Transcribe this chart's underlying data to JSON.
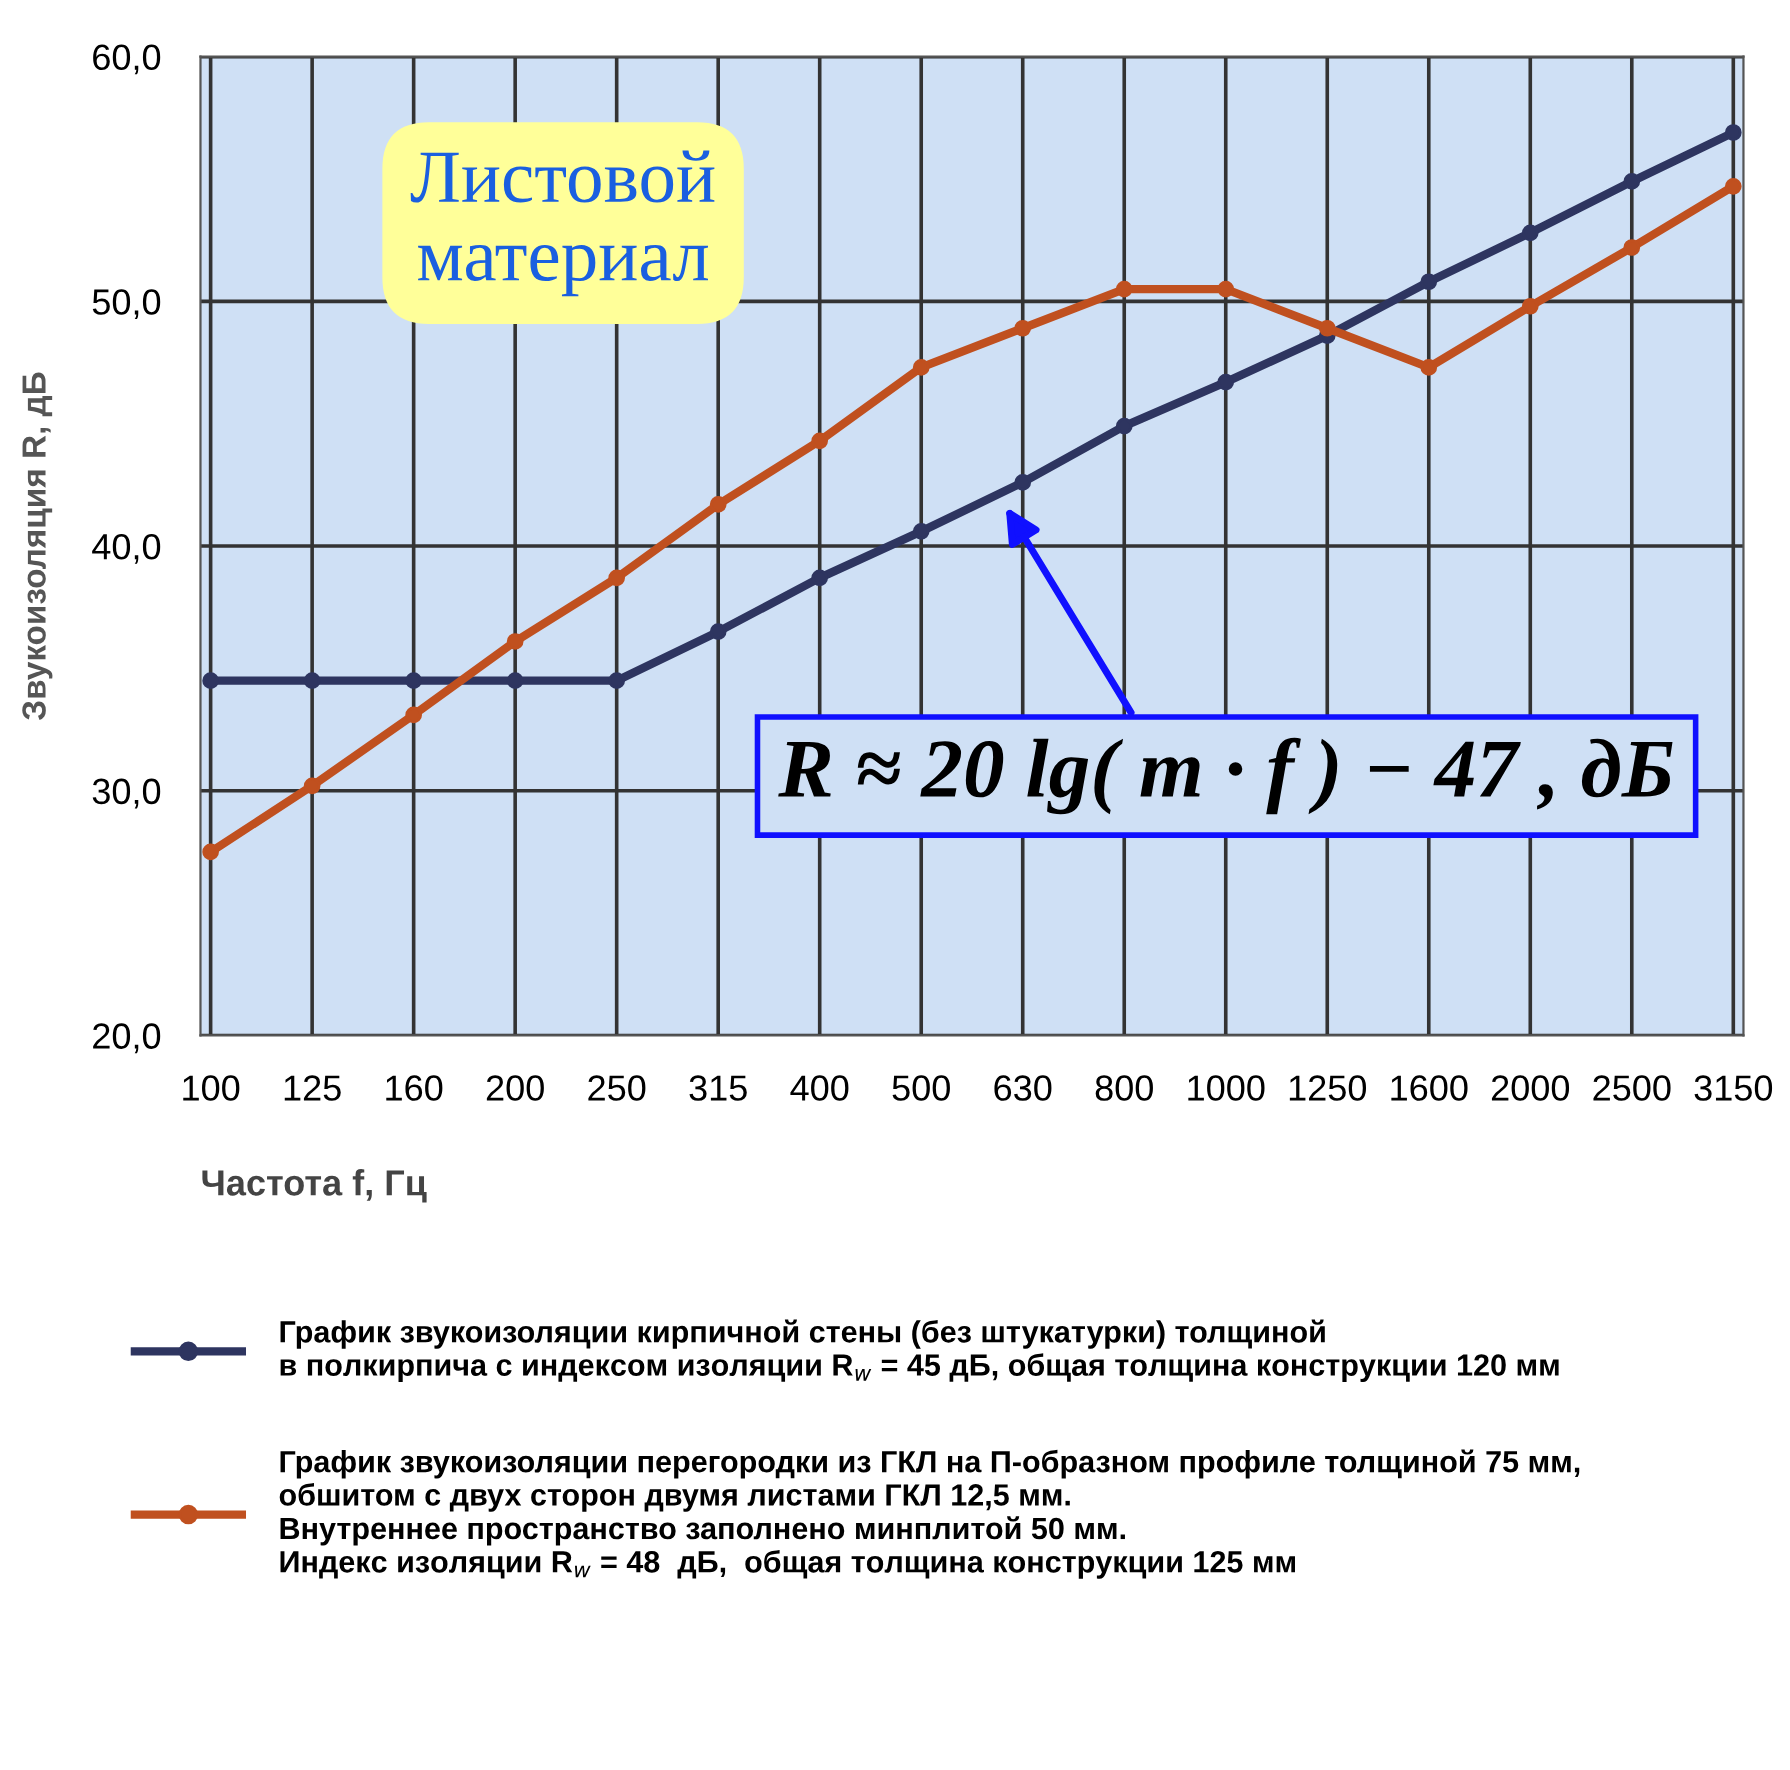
{
  "chart_data": {
    "type": "line",
    "xlabel": "Частота f, Гц",
    "ylabel": "Звукоизоляция R, дБ",
    "categories": [
      "100",
      "125",
      "160",
      "200",
      "250",
      "315",
      "400",
      "500",
      "630",
      "800",
      "1000",
      "1250",
      "1600",
      "2000",
      "2500",
      "3150"
    ],
    "ylim": [
      20,
      60
    ],
    "yticks": [
      {
        "value": 20,
        "label": "20,0"
      },
      {
        "value": 30,
        "label": "30,0"
      },
      {
        "value": 40,
        "label": "40,0"
      },
      {
        "value": 50,
        "label": "50,0"
      },
      {
        "value": 60,
        "label": "60,0"
      }
    ],
    "grid": true,
    "legend": "bottom",
    "marker": "circle",
    "line_style": "solid",
    "series": [
      {
        "name": "График звукоизоляции кирпичной стены (без штукатурки) толщиной\nв полкирпича с индексом изоляции R$_{w}$ = 45 дБ, общая толщина конструкции 120 мм",
        "color": "#2e3560",
        "values": [
          34.5,
          34.5,
          34.5,
          34.5,
          34.5,
          36.5,
          38.7,
          40.6,
          42.6,
          44.9,
          46.7,
          48.6,
          50.8,
          52.8,
          54.9,
          56.9
        ]
      },
      {
        "name": "График звукоизоляции перегородки из ГКЛ на П-образном профиле толщиной 75 мм,\nобшитом с двух сторон двумя листами ГКЛ 12,5 мм.\nВнутреннее пространство заполнено минплитой 50 мм.\nИндекс изоляции R$_{w}$ = 48  дБ,  общая толщина конструкции 125 мм",
        "color": "#c0501f",
        "values": [
          27.5,
          30.2,
          33.1,
          36.1,
          38.7,
          41.7,
          44.3,
          47.3,
          48.9,
          50.5,
          50.5,
          48.9,
          47.3,
          49.8,
          52.2,
          54.7
        ]
      }
    ],
    "annotations": [
      "Листовой\nматериал",
      "R ≈ 20 lg( m · f ) − 47 , дБ"
    ]
  }
}
